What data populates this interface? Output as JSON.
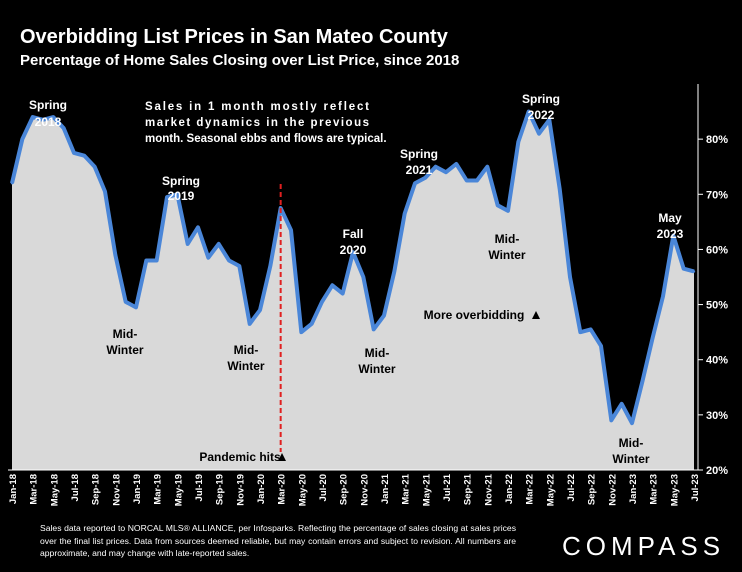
{
  "title": "Overbidding List Prices in San Mateo County",
  "subtitle": "Percentage of Home Sales Closing over List Price, since 2018",
  "footnote": "Sales data reported to NORCAL MLS® ALLIANCE, per Infosparks. Reflecting the percentage of sales closing at sales prices over the final list prices. Data from sources deemed reliable, but may contain errors and subject to revision. All numbers are approximate, and may change with late-reported sales.",
  "logo": "COMPASS",
  "chart_data": {
    "type": "area",
    "title": "Overbidding List Prices in San Mateo County",
    "subtitle": "Percentage of Home Sales Closing over List Price, since 2018",
    "ylim": [
      20,
      90
    ],
    "y_ticks": [
      "20%",
      "30%",
      "40%",
      "50%",
      "60%",
      "70%",
      "80%"
    ],
    "y_tick_values": [
      20,
      30,
      40,
      50,
      60,
      70,
      80
    ],
    "x_tick_labels": [
      "Jan-18",
      "Mar-18",
      "May-18",
      "Jul-18",
      "Sep-18",
      "Nov-18",
      "Jan-19",
      "Mar-19",
      "May-19",
      "Jul-19",
      "Sep-19",
      "Nov-19",
      "Jan-20",
      "Mar-20",
      "May-20",
      "Jul-20",
      "Sep-20",
      "Nov-20",
      "Jan-21",
      "Mar-21",
      "May-21",
      "Jul-21",
      "Sep-21",
      "Nov-21",
      "Jan-22",
      "Mar-22",
      "May-22",
      "Jul-22",
      "Sep-22",
      "Nov-22",
      "Jan-23",
      "Mar-23",
      "May-23",
      "Jul-23"
    ],
    "grid": false,
    "fill_color": "#d9d9d9",
    "line_color": "#4a86d8",
    "series": [
      {
        "x": [
          "Jan-18",
          "Feb-18",
          "Mar-18",
          "Apr-18",
          "May-18",
          "Jun-18",
          "Jul-18",
          "Aug-18",
          "Sep-18",
          "Oct-18",
          "Nov-18",
          "Dec-18",
          "Jan-19",
          "Feb-19",
          "Mar-19",
          "Apr-19",
          "May-19",
          "Jun-19",
          "Jul-19",
          "Aug-19",
          "Sep-19",
          "Oct-19",
          "Nov-19",
          "Dec-19",
          "Jan-20",
          "Feb-20",
          "Mar-20",
          "Apr-20",
          "May-20",
          "Jun-20",
          "Jul-20",
          "Aug-20",
          "Sep-20",
          "Oct-20",
          "Nov-20",
          "Dec-20",
          "Jan-21",
          "Feb-21",
          "Mar-21",
          "Apr-21",
          "May-21",
          "Jun-21",
          "Jul-21",
          "Aug-21",
          "Sep-21",
          "Oct-21",
          "Nov-21",
          "Dec-21",
          "Jan-22",
          "Feb-22",
          "Mar-22",
          "Apr-22",
          "May-22",
          "Jun-22",
          "Jul-22",
          "Aug-22",
          "Sep-22",
          "Oct-22",
          "Nov-22",
          "Dec-22",
          "Jan-23",
          "Feb-23",
          "Mar-23",
          "Apr-23",
          "May-23",
          "Jun-23",
          "Jul-23"
        ],
        "values": [
          72,
          80,
          84,
          83.5,
          84,
          82,
          77.5,
          77,
          75,
          70.5,
          59,
          50.5,
          49.5,
          58,
          58,
          69.5,
          70,
          61,
          64,
          58.5,
          61,
          58,
          57,
          46.5,
          49,
          57,
          67.5,
          63.5,
          45,
          46.5,
          50.5,
          53.5,
          52,
          59.5,
          55,
          45.5,
          48,
          56,
          66.5,
          72,
          73,
          75,
          74,
          75.5,
          72.5,
          72.5,
          75,
          68,
          67,
          79.5,
          85,
          81,
          83.5,
          71,
          55,
          45,
          45.5,
          42.5,
          29,
          32,
          28.5,
          36,
          44,
          51.5,
          62.5,
          56.5,
          56
        ]
      }
    ],
    "annotations": [
      {
        "text": "Spring 2018",
        "x": "Apr-18",
        "y": 84
      },
      {
        "text": "Spring 2019",
        "x": "Apr-19",
        "y": 70
      },
      {
        "text": "Spring 2021",
        "x": "May-21",
        "y": 75
      },
      {
        "text": "Spring 2022",
        "x": "Mar-22",
        "y": 85
      },
      {
        "text": "Fall 2020",
        "x": "Oct-20",
        "y": 59.5
      },
      {
        "text": "May 2023",
        "x": "May-23",
        "y": 62.5
      },
      {
        "text": "Mid-Winter",
        "x": "Dec-18",
        "y": 50.5
      },
      {
        "text": "Mid-Winter",
        "x": "Dec-19",
        "y": 46.5
      },
      {
        "text": "Mid-Winter",
        "x": "Dec-20",
        "y": 45.5
      },
      {
        "text": "Mid-Winter",
        "x": "Jan-22",
        "y": 67
      },
      {
        "text": "Mid-Winter",
        "x": "Jan-23",
        "y": 28.5
      },
      {
        "text": "Pandemic hits",
        "x": "Mar-20",
        "y": 23
      },
      {
        "text": "More overbidding",
        "x": "Apr-21",
        "y": 50
      },
      {
        "text": "Sales in 1 month mostly reflect market dynamics in the previous month. Seasonal ebbs and flows are typical.",
        "x": "Feb-19",
        "y": 85
      }
    ],
    "reference_line": {
      "x": "Mar-20",
      "style": "dashed",
      "color": "#e02020"
    }
  }
}
